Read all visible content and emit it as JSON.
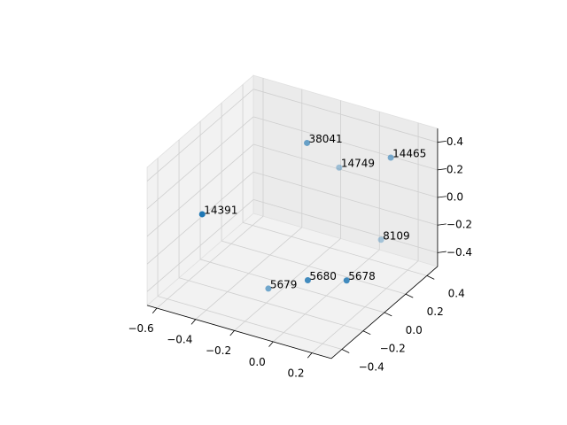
{
  "chart_data": {
    "type": "scatter3d",
    "x": [
      -0.264,
      -0.153,
      0.064,
      -0.536,
      0.085,
      -0.079,
      0.072,
      -0.256
    ],
    "y": [
      0.3,
      0.4,
      0.49,
      -0.19,
      0.36,
      -0.03,
      0.06,
      -0.078
    ],
    "z": [
      0.3,
      0.1,
      0.2,
      0.0,
      -0.3,
      -0.4,
      -0.4,
      -0.5
    ],
    "labels": [
      "38041",
      "14749",
      "14465",
      "14391",
      "8109",
      "5680",
      "5678",
      "5679"
    ],
    "color": "#1f77b4",
    "xlim": [
      -0.65,
      0.3
    ],
    "ylim": [
      -0.5,
      0.5
    ],
    "zlim": [
      -0.5,
      0.5
    ],
    "xticks": [
      {
        "value": -0.6,
        "label": "−0.6"
      },
      {
        "value": -0.4,
        "label": "−0.4"
      },
      {
        "value": -0.2,
        "label": "−0.2"
      },
      {
        "value": 0,
        "label": "0.0"
      },
      0.2
    ],
    "yticks": [
      {
        "value": -0.4,
        "label": "−0.4"
      },
      {
        "value": -0.2,
        "label": "−0.2"
      },
      {
        "value": 0,
        "label": "0.0"
      },
      0.2,
      0.4
    ],
    "zticks": [
      {
        "value": -0.4,
        "label": "−0.4"
      },
      {
        "value": -0.2,
        "label": "−0.2"
      },
      {
        "value": 0,
        "label": "0.0"
      },
      0.2,
      0.4
    ],
    "grid": true
  }
}
